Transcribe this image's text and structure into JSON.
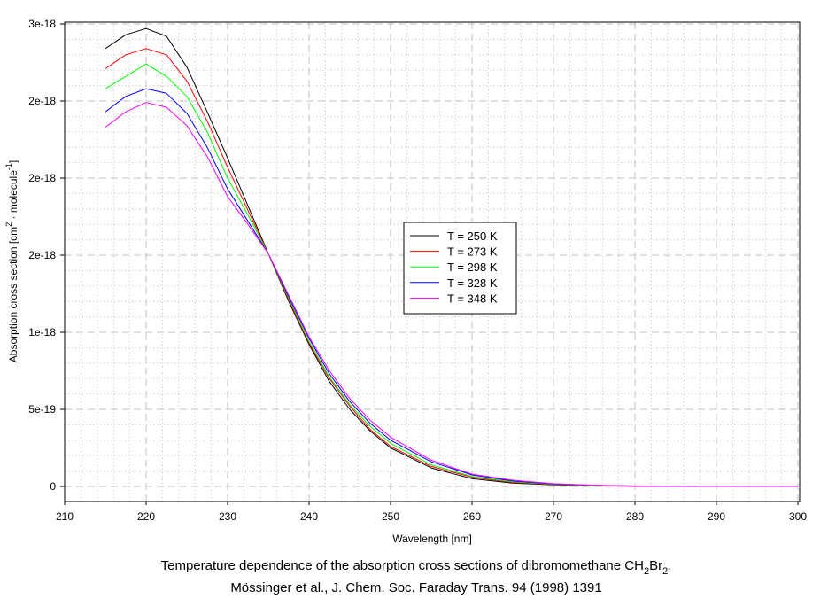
{
  "chart_data": {
    "type": "line",
    "title": "",
    "xlabel": "Wavelength [nm]",
    "ylabel": {
      "main": "Absorption cross section [cm",
      "sup1": "2",
      "mid": " · molecule",
      "sup2": "-1",
      "end": "]"
    },
    "xlim": [
      210,
      300
    ],
    "ylim": [
      0,
      3e-18
    ],
    "grid": true,
    "legend_position": "center",
    "x_ticks": [
      210,
      220,
      230,
      240,
      250,
      260,
      270,
      280,
      290,
      300
    ],
    "x_tick_labels": [
      "210",
      "220",
      "230",
      "240",
      "250",
      "260",
      "270",
      "280",
      "290",
      "300"
    ],
    "y_ticks": [
      0,
      5e-19,
      1e-18,
      1.5e-18,
      2e-18,
      2.5e-18,
      3e-18
    ],
    "y_tick_labels": [
      "0",
      "5e-19",
      "1e-18",
      "2e-18",
      "2e-18",
      "2e-18",
      "3e-18"
    ],
    "x": [
      215,
      217.5,
      220,
      222.5,
      225,
      227.5,
      230,
      232.5,
      235,
      237.5,
      240,
      242.5,
      245,
      247.5,
      250,
      255,
      260,
      265,
      270,
      275,
      280,
      285,
      288
    ],
    "series": [
      {
        "name": "T = 250 K",
        "color": "#000000",
        "values": [
          2.84e-18,
          2.93e-18,
          2.97e-18,
          2.92e-18,
          2.72e-18,
          2.43e-18,
          2.13e-18,
          1.82e-18,
          1.51e-18,
          1.2e-18,
          9.2e-19,
          6.8e-19,
          5e-19,
          3.6e-19,
          2.5e-19,
          1.2e-19,
          5e-20,
          2.2e-20,
          1e-20,
          4e-21,
          2e-21,
          1e-21,
          0
        ]
      },
      {
        "name": "T = 273 K",
        "color": "#ff0000",
        "values": [
          2.71e-18,
          2.8e-18,
          2.84e-18,
          2.8e-18,
          2.63e-18,
          2.37e-18,
          2.07e-18,
          1.79e-18,
          1.51e-18,
          1.21e-18,
          9.3e-19,
          7e-19,
          5.2e-19,
          3.7e-19,
          2.6e-19,
          1.3e-19,
          6e-20,
          2.6e-20,
          1.2e-20,
          5e-21,
          2e-21,
          1e-21,
          0
        ]
      },
      {
        "name": "T = 298 K",
        "color": "#00ff00",
        "values": [
          2.58e-18,
          2.66e-18,
          2.74e-18,
          2.66e-18,
          2.53e-18,
          2.3e-18,
          2e-18,
          1.76e-18,
          1.51e-18,
          1.22e-18,
          9.4e-19,
          7.1e-19,
          5.3e-19,
          3.9e-19,
          2.8e-19,
          1.4e-19,
          6.5e-20,
          3e-20,
          1.4e-20,
          6e-21,
          3e-21,
          1e-21,
          0
        ]
      },
      {
        "name": "T = 328 K",
        "color": "#0000ff",
        "values": [
          2.43e-18,
          2.53e-18,
          2.58e-18,
          2.55e-18,
          2.42e-18,
          2.2e-18,
          1.93e-18,
          1.72e-18,
          1.51e-18,
          1.23e-18,
          9.6e-19,
          7.3e-19,
          5.5e-19,
          4.1e-19,
          3e-19,
          1.6e-19,
          7.5e-20,
          3.5e-20,
          1.6e-20,
          7e-21,
          3e-21,
          1e-21,
          0
        ]
      },
      {
        "name": "T = 348 K",
        "color": "#ff00ff",
        "values": [
          2.33e-18,
          2.43e-18,
          2.49e-18,
          2.46e-18,
          2.34e-18,
          2.14e-18,
          1.88e-18,
          1.7e-18,
          1.51e-18,
          1.24e-18,
          9.7e-19,
          7.5e-19,
          5.7e-19,
          4.3e-19,
          3.2e-19,
          1.7e-19,
          8e-20,
          4e-20,
          1.8e-20,
          8e-21,
          3e-21,
          1e-21,
          0
        ]
      }
    ]
  },
  "caption": {
    "line1": {
      "text": "Temperature dependence of the absorption cross sections of dibromomethane CH",
      "sub1": "2",
      "mid": "Br",
      "sub2": "2",
      "end": ","
    },
    "line2": "Mössinger et al., J. Chem. Soc. Faraday Trans. 94 (1998) 1391"
  }
}
